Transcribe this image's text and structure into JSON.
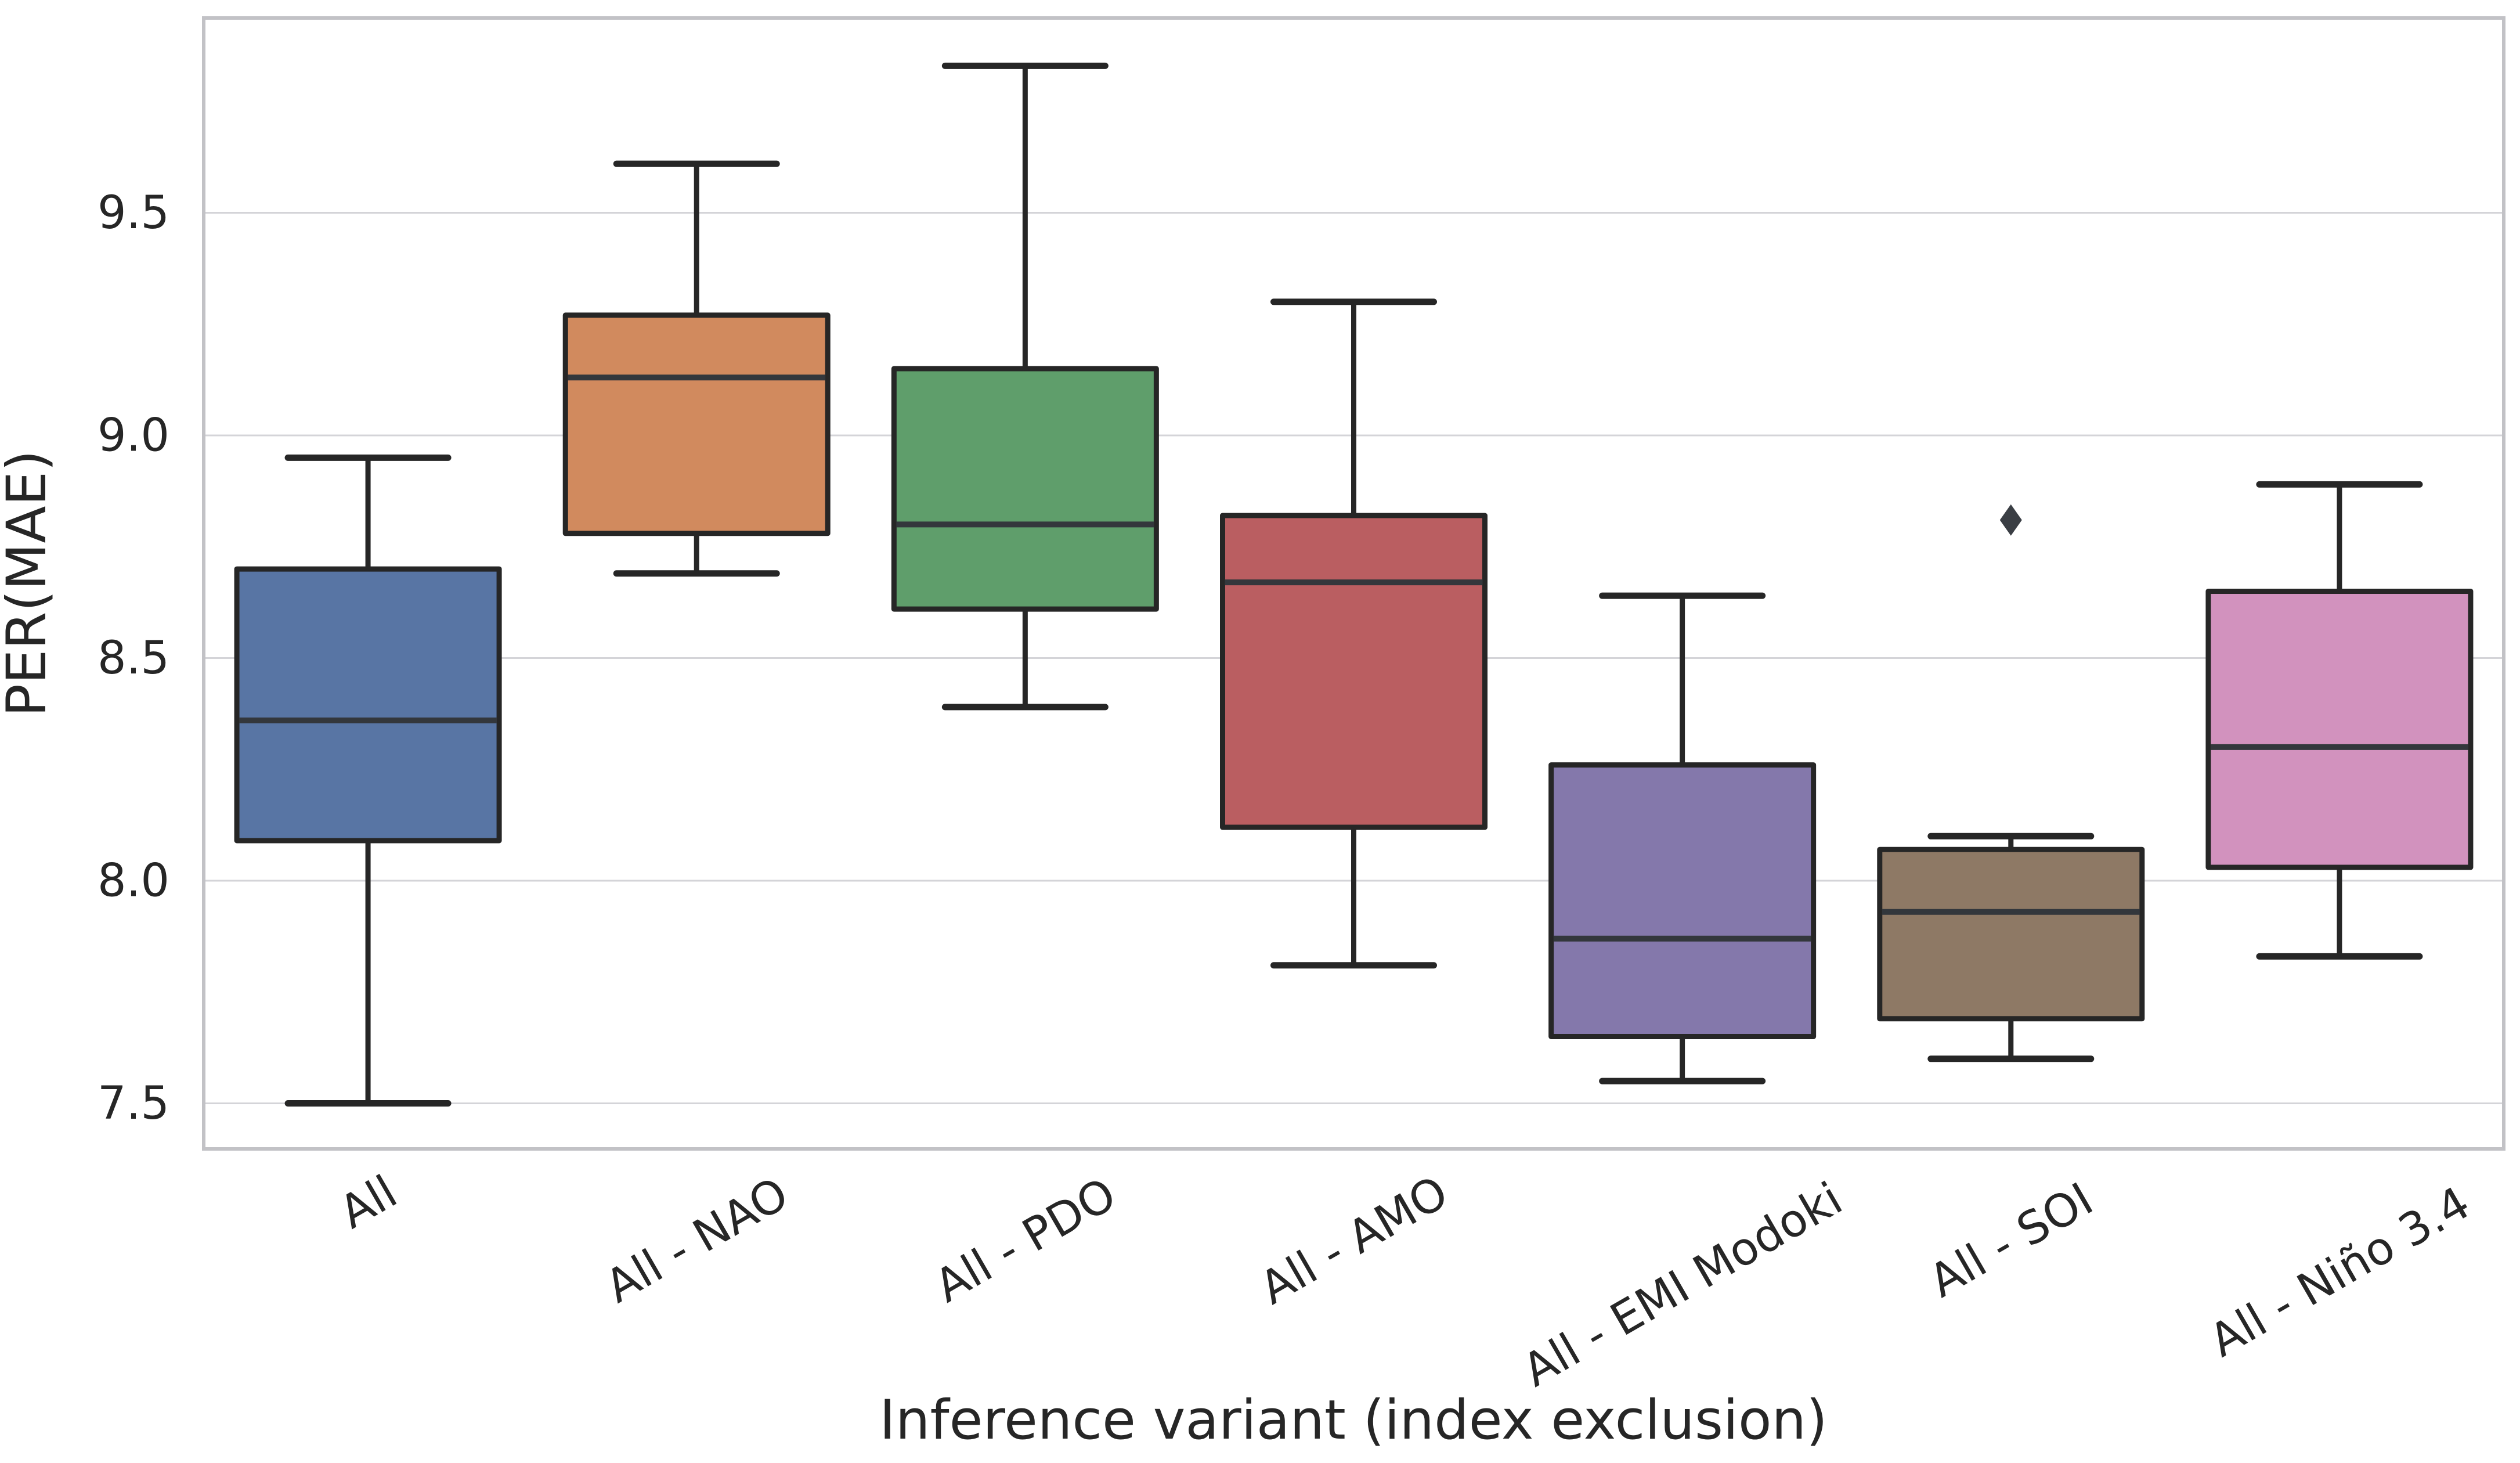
{
  "figure": {
    "background": "#ffffff",
    "axis_text_color": "#262626",
    "grid_color": "#d4d4d8",
    "spine_color": "#c2c2c6",
    "box_line_color": "#262626",
    "median_line_color": "#33373c",
    "outlier_color": "#3a3e44"
  },
  "chart_data": {
    "type": "box",
    "title": "",
    "xlabel": "Inference variant (index exclusion)",
    "ylabel": "PER(MAE)",
    "categories": [
      "All",
      "All - NAO",
      "All - PDO",
      "All - AMO",
      "All - EMI Modoki",
      "All - SOI",
      "All - Niño 3.4"
    ],
    "yticks": [
      7.5,
      8.0,
      8.5,
      9.0,
      9.5
    ],
    "ylim": [
      7.35,
      9.94
    ],
    "grid": true,
    "legend_position": "none",
    "boxes": [
      {
        "label": "All",
        "color": "#5875A4",
        "whisker_low": 7.5,
        "q1": 8.09,
        "median": 8.36,
        "q3": 8.7,
        "whisker_high": 8.95,
        "outliers": []
      },
      {
        "label": "All - NAO",
        "color": "#D18A5E",
        "whisker_low": 8.69,
        "q1": 8.78,
        "median": 9.13,
        "q3": 9.27,
        "whisker_high": 9.61,
        "outliers": []
      },
      {
        "label": "All - PDO",
        "color": "#5F9E6B",
        "whisker_low": 8.39,
        "q1": 8.61,
        "median": 8.8,
        "q3": 9.15,
        "whisker_high": 9.83,
        "outliers": []
      },
      {
        "label": "All - AMO",
        "color": "#BA5E61",
        "whisker_low": 7.81,
        "q1": 8.12,
        "median": 8.67,
        "q3": 8.82,
        "whisker_high": 9.3,
        "outliers": []
      },
      {
        "label": "All - EMI Modoki",
        "color": "#8478AB",
        "whisker_low": 7.55,
        "q1": 7.65,
        "median": 7.87,
        "q3": 8.26,
        "whisker_high": 8.64,
        "outliers": []
      },
      {
        "label": "All - SOI",
        "color": "#8E7965",
        "whisker_low": 7.6,
        "q1": 7.69,
        "median": 7.93,
        "q3": 8.07,
        "whisker_high": 8.1,
        "outliers": [
          8.81
        ]
      },
      {
        "label": "All - Niño 3.4",
        "color": "#D292BE",
        "whisker_low": 7.83,
        "q1": 8.03,
        "median": 8.3,
        "q3": 8.65,
        "whisker_high": 8.89,
        "outliers": []
      }
    ]
  }
}
